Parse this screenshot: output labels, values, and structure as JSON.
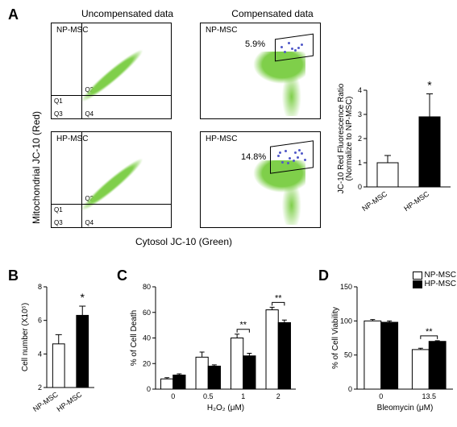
{
  "panelA": {
    "label": "A",
    "colHeaders": {
      "left": "Uncompensated data",
      "right": "Compensated data"
    },
    "yAxisLabel": "Mitochondrial JC-10 (Red)",
    "xAxisLabel": "Cytosol JC-10 (Green)",
    "plots": {
      "np_uncomp": {
        "title": "NP-MSC",
        "quads": {
          "q1": "Q1",
          "q2": "Q2",
          "q3": "Q3",
          "q4": "Q4"
        },
        "cloud_color": "#7fcf4a"
      },
      "hp_uncomp": {
        "title": "HP-MSC",
        "quads": {
          "q1": "Q1",
          "q2": "Q2",
          "q3": "Q3",
          "q4": "Q4"
        },
        "cloud_color": "#7fcf4a"
      },
      "np_comp": {
        "title": "NP-MSC",
        "gate_pct": "5.9%",
        "cloud_color": "#7fcf4a",
        "gate_color": "#5058c8"
      },
      "hp_comp": {
        "title": "HP-MSC",
        "gate_pct": "14.8%",
        "cloud_color": "#7fcf4a",
        "gate_color": "#5058c8"
      }
    },
    "barChart": {
      "yLabel": "JC-10 Red Fluorescence Ratio\n(Normalize to NP-MSC)",
      "ylim": [
        0,
        4
      ],
      "ytick_step": 1,
      "categories": [
        "NP-MSC",
        "HP-MSC"
      ],
      "values": [
        1.0,
        2.9
      ],
      "errors": [
        0.3,
        0.95
      ],
      "colors": [
        "#ffffff",
        "#000000"
      ],
      "sig": "*",
      "border_color": "#000000",
      "bar_width": 0.5
    }
  },
  "panelB": {
    "label": "B",
    "yLabel": "Cell number (X10⁵)",
    "ylim": [
      2,
      8
    ],
    "ytick_step": 2,
    "categories": [
      "NP-MSC",
      "HP-MSC"
    ],
    "values": [
      4.6,
      6.3
    ],
    "errors": [
      0.55,
      0.55
    ],
    "colors": [
      "#ffffff",
      "#000000"
    ],
    "sig": "*",
    "border_color": "#000000",
    "bar_width": 0.5
  },
  "panelC": {
    "label": "C",
    "yLabel": "% of Cell Death",
    "xLabel": "H₂O₂ (μM)",
    "ylim": [
      0,
      80
    ],
    "ytick_step": 20,
    "categories": [
      "0",
      "0.5",
      "1",
      "2"
    ],
    "series": [
      {
        "name": "NP-MSC",
        "color": "#ffffff",
        "values": [
          8,
          25,
          40,
          62
        ],
        "errors": [
          1,
          4,
          3,
          2
        ]
      },
      {
        "name": "HP-MSC",
        "color": "#000000",
        "values": [
          11,
          18,
          26,
          52
        ],
        "errors": [
          1,
          1,
          2,
          2
        ]
      }
    ],
    "sig_marks": [
      {
        "cat_index": 2,
        "label": "**"
      },
      {
        "cat_index": 3,
        "label": "**"
      }
    ],
    "legend": [
      "NP-MSC",
      "HP-MSC"
    ],
    "bar_width": 0.35
  },
  "panelD": {
    "label": "D",
    "yLabel": "% of Cell Viability",
    "xLabel": "Bleomycin (μM)",
    "ylim": [
      0,
      150
    ],
    "ytick_step": 50,
    "categories": [
      "0",
      "13.5"
    ],
    "series": [
      {
        "name": "NP-MSC",
        "color": "#ffffff",
        "values": [
          100,
          58
        ],
        "errors": [
          2,
          2
        ]
      },
      {
        "name": "HP-MSC",
        "color": "#000000",
        "values": [
          98,
          70
        ],
        "errors": [
          2,
          1
        ]
      }
    ],
    "sig_marks": [
      {
        "cat_index": 1,
        "label": "**"
      }
    ],
    "bar_width": 0.35
  },
  "fonts": {
    "axis_label": 11,
    "tick": 9,
    "panel_label": 18
  }
}
